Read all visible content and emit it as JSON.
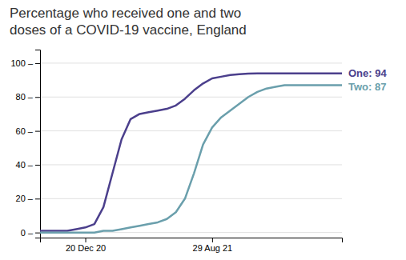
{
  "chart_data": {
    "type": "line",
    "title": "Percentage who received one and two\ndoses of a COVID-19 vaccine, England",
    "x": [
      0,
      3,
      6,
      9,
      12,
      15,
      18,
      21,
      24,
      27,
      30,
      33,
      36,
      39,
      42,
      45,
      48,
      51,
      54,
      57,
      60,
      63,
      66,
      69,
      72,
      75,
      78,
      81,
      84,
      87,
      90,
      93,
      96,
      99,
      100
    ],
    "series": [
      {
        "color": "#4b3f8c",
        "values": [
          1,
          1,
          1,
          1,
          2,
          3,
          5,
          15,
          35,
          55,
          67,
          70,
          71,
          72,
          73,
          75,
          79,
          84,
          88,
          91,
          92,
          93,
          93.5,
          93.8,
          94,
          94,
          94,
          94,
          94,
          94,
          94,
          94,
          94,
          94,
          94
        ]
      },
      {
        "color": "#6a9fac",
        "values": [
          0,
          0,
          0,
          0,
          0,
          0,
          0,
          1,
          1,
          2,
          3,
          4,
          5,
          6,
          8,
          12,
          20,
          35,
          52,
          62,
          68,
          72,
          76,
          80,
          83,
          85,
          86,
          87,
          87,
          87,
          87,
          87,
          87,
          87,
          87
        ]
      }
    ],
    "annotations": [
      {
        "text": "One: 94",
        "color": "#4b3f8c"
      },
      {
        "text": "Two: 87",
        "color": "#6a9fac"
      }
    ],
    "xlim": [
      0,
      100
    ],
    "xticks": [
      {
        "value": 15,
        "label": "20 Dec 20"
      },
      {
        "value": 57,
        "label": "29 Aug 21"
      }
    ],
    "ylim": [
      -3,
      108
    ],
    "yticks": [
      {
        "value": 0,
        "label": "0 –"
      },
      {
        "value": 20,
        "label": "20 –"
      },
      {
        "value": 40,
        "label": "40 –"
      },
      {
        "value": 60,
        "label": "60 –"
      },
      {
        "value": 80,
        "label": "80 –"
      },
      {
        "value": 100,
        "label": "100 –"
      }
    ],
    "grid": true
  }
}
